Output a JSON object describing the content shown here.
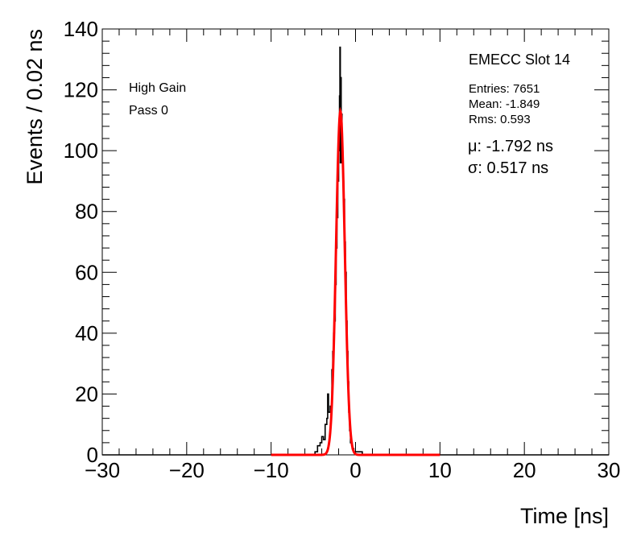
{
  "chart_data": {
    "type": "histogram",
    "title": "EMECC Slot 14",
    "xlabel": "Time [ns]",
    "ylabel": "Events / 0.02 ns",
    "xlim": [
      -30,
      30
    ],
    "ylim": [
      0,
      140
    ],
    "xticks": [
      "−30",
      "−20",
      "−10",
      "0",
      "10",
      "20",
      "30"
    ],
    "yticks": [
      "0",
      "20",
      "40",
      "60",
      "80",
      "100",
      "120",
      "140"
    ],
    "annotations": {
      "left": [
        "High Gain",
        "Pass 0"
      ],
      "stats": [
        "Entries: 7651",
        "Mean: -1.849",
        "Rms: 0.593"
      ],
      "fit": [
        "μ: -1.792 ns",
        "σ: 0.517 ns"
      ]
    },
    "histogram": {
      "name": "Events",
      "color": "#000000",
      "bin_width": 0.02,
      "entries": 7651,
      "mean": -1.849,
      "rms": 0.593,
      "peak_max": 134,
      "points": [
        [
          -5.4,
          0
        ],
        [
          -4.8,
          1
        ],
        [
          -4.5,
          3
        ],
        [
          -4.2,
          4
        ],
        [
          -4.0,
          6
        ],
        [
          -3.8,
          5
        ],
        [
          -3.6,
          10
        ],
        [
          -3.4,
          12
        ],
        [
          -3.3,
          20
        ],
        [
          -3.2,
          14
        ],
        [
          -3.0,
          16
        ],
        [
          -2.8,
          28
        ],
        [
          -2.7,
          34
        ],
        [
          -2.6,
          40
        ],
        [
          -2.5,
          44
        ],
        [
          -2.4,
          56
        ],
        [
          -2.3,
          68
        ],
        [
          -2.2,
          78
        ],
        [
          -2.1,
          90
        ],
        [
          -2.0,
          100
        ],
        [
          -1.95,
          110
        ],
        [
          -1.9,
          118
        ],
        [
          -1.85,
          134
        ],
        [
          -1.8,
          96
        ],
        [
          -1.75,
          124
        ],
        [
          -1.7,
          104
        ],
        [
          -1.65,
          112
        ],
        [
          -1.6,
          96
        ],
        [
          -1.55,
          100
        ],
        [
          -1.5,
          94
        ],
        [
          -1.45,
          90
        ],
        [
          -1.4,
          84
        ],
        [
          -1.3,
          70
        ],
        [
          -1.2,
          60
        ],
        [
          -1.1,
          44
        ],
        [
          -1.0,
          34
        ],
        [
          -0.9,
          24
        ],
        [
          -0.8,
          14
        ],
        [
          -0.7,
          8
        ],
        [
          -0.6,
          4
        ],
        [
          -0.4,
          2
        ],
        [
          -0.2,
          1
        ],
        [
          0.2,
          1
        ],
        [
          0.8,
          0
        ]
      ]
    },
    "fit": {
      "name": "Gaussian fit",
      "color": "#ff0000",
      "mu": -1.792,
      "sigma": 0.517,
      "amplitude": 113,
      "range": [
        -10,
        10
      ]
    }
  }
}
